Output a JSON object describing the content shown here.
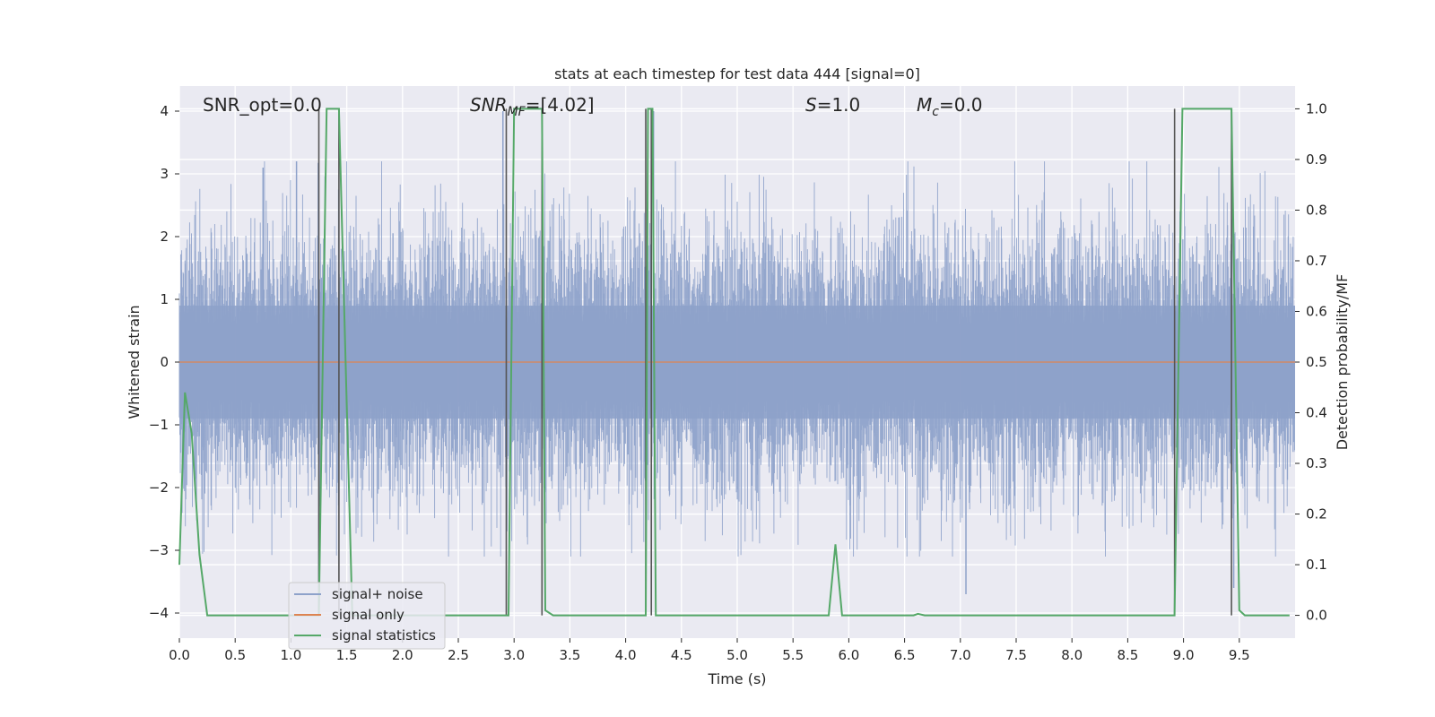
{
  "chart_data": {
    "type": "line",
    "title": "stats at each timestep for test data 444 [signal=0]",
    "xlabel": "Time (s)",
    "ylabel_left": "Whitened strain",
    "ylabel_right": "Detection probability/MF",
    "xlim": [
      0.0,
      10.0
    ],
    "ylim_left": [
      -4.4,
      4.4
    ],
    "ylim_right": [
      -0.045,
      1.045
    ],
    "xticks": [
      "0.0",
      "0.5",
      "1.0",
      "1.5",
      "2.0",
      "2.5",
      "3.0",
      "3.5",
      "4.0",
      "4.5",
      "5.0",
      "5.5",
      "6.0",
      "6.5",
      "7.0",
      "7.5",
      "8.0",
      "8.5",
      "9.0",
      "9.5"
    ],
    "yticks_left": [
      "4",
      "3",
      "2",
      "1",
      "0",
      "−1",
      "−2",
      "−3",
      "−4"
    ],
    "yticks_right": [
      "1.0",
      "0.9",
      "0.8",
      "0.7",
      "0.6",
      "0.5",
      "0.4",
      "0.3",
      "0.2",
      "0.1",
      "0.0"
    ],
    "grid": true,
    "legend_placement": "lower-left",
    "annotations": [
      {
        "text": "SNR_opt=0.0",
        "italic_part": ""
      },
      {
        "prefix": "SNR",
        "sub": "MF",
        "suffix": "=[4.02]"
      },
      {
        "prefix": "S",
        "sub": "",
        "suffix": "=1.0"
      },
      {
        "prefix": "M",
        "sub": "c",
        "suffix": "=0.0"
      }
    ],
    "series": [
      {
        "name": "signal+ noise",
        "color": "#8ea2ca",
        "style": "dense noise, approx mean 0, std ~0.9, peaks up to ~3.2 and down to ~-3.7"
      },
      {
        "name": "signal only",
        "color": "#dd8452",
        "values_constant": 0.0
      },
      {
        "name": "signal statistics",
        "color": "#55a868",
        "axis": "right",
        "x": [
          0.0,
          0.05,
          0.11,
          0.18,
          0.25,
          1.0,
          1.25,
          1.32,
          1.43,
          1.55,
          2.93,
          2.95,
          3.0,
          3.25,
          3.28,
          3.35,
          4.18,
          4.2,
          4.24,
          4.27,
          4.3,
          5.82,
          5.88,
          5.94,
          6.58,
          6.62,
          6.68,
          8.92,
          8.99,
          9.43,
          9.5,
          9.55,
          9.95
        ],
        "y": [
          0.1,
          0.44,
          0.36,
          0.12,
          0.0,
          0.0,
          0.0,
          1.0,
          1.0,
          0.0,
          0.0,
          0.0,
          1.0,
          1.0,
          0.01,
          0.0,
          0.0,
          1.0,
          1.0,
          0.0,
          0.0,
          0.0,
          0.14,
          0.0,
          0.0,
          0.003,
          0.0,
          0.0,
          1.0,
          1.0,
          0.01,
          0.0,
          0.0
        ]
      }
    ],
    "vertical_lines_x": [
      1.25,
      1.43,
      2.93,
      3.25,
      4.18,
      4.23,
      8.92,
      9.43
    ]
  }
}
